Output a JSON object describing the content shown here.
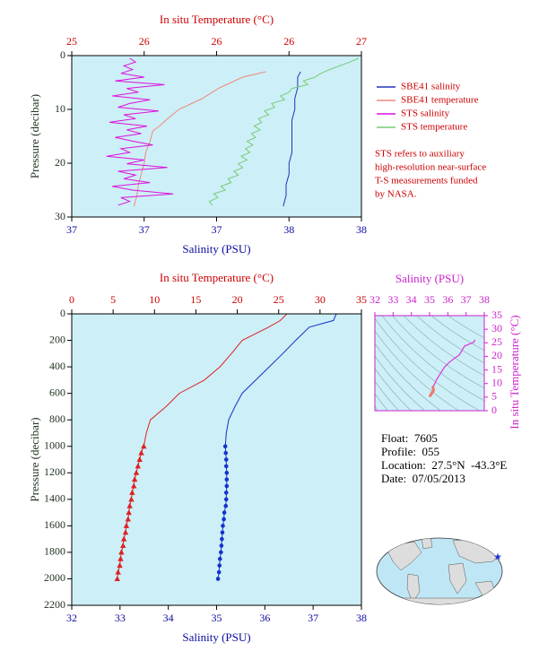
{
  "chart_data": [
    {
      "type": "profile",
      "x2label": "In situ Temperature (°C)",
      "xlabel": "Salinity (PSU)",
      "ylabel": "Pressure (decibar)",
      "x2lim": [
        25,
        27
      ],
      "x2ticks": [
        25,
        {
          "value": 25.5,
          "label": "26"
        },
        26,
        {
          "value": 26.5,
          "label": "26"
        },
        27
      ],
      "xlim": [
        37,
        38
      ],
      "xticks": [
        37,
        {
          "value": 37.25,
          "label": "37"
        },
        {
          "value": 37.5,
          "label": "37"
        },
        {
          "value": 37.75,
          "label": "38"
        },
        38
      ],
      "ylim": [
        0,
        30
      ],
      "yticks": [
        0,
        10,
        20,
        30
      ],
      "y_inverted": true,
      "background": "#cdeff7",
      "legend": "right",
      "series": [
        {
          "name": "SBE41 salinity",
          "color": "#2233bb",
          "values": [
            37.79,
            37.78,
            37.78,
            37.77,
            37.77,
            37.76,
            37.76,
            37.76,
            37.76,
            37.75,
            37.75,
            37.74,
            37.74,
            37.73
          ],
          "y": [
            3,
            4,
            6,
            8,
            10,
            12,
            14,
            16,
            18,
            20,
            22,
            24,
            26,
            28
          ]
        },
        {
          "name": "SBE41 temperature",
          "color": "#f08878",
          "axis": "x2",
          "values": [
            26.34,
            26.18,
            26.02,
            25.9,
            25.74,
            25.65,
            25.61,
            25.56,
            25.54,
            25.51,
            25.5,
            25.48,
            25.46,
            25.45,
            25.43
          ],
          "y": [
            3,
            4,
            6,
            8,
            10,
            12,
            13,
            14,
            16,
            18,
            20,
            22,
            24,
            26,
            28
          ]
        },
        {
          "name": "STS salinity",
          "color": "#dd11dd",
          "values": [
            37.2,
            37.22,
            37.18,
            37.21,
            37.17,
            37.25,
            37.15,
            37.32,
            37.19,
            37.23,
            37.14,
            37.27,
            37.2,
            37.16,
            37.3,
            37.18,
            37.22,
            37.13,
            37.26,
            37.19,
            37.24,
            37.15,
            37.21,
            37.28,
            37.17,
            37.2,
            37.12,
            37.25,
            37.19,
            37.33,
            37.16,
            37.22,
            37.18,
            37.27,
            37.14,
            37.21,
            37.35,
            37.17,
            37.2,
            37.16
          ],
          "y": [
            0.5,
            1.2,
            1.9,
            2.6,
            3.3,
            4.0,
            4.7,
            5.4,
            6.1,
            6.8,
            7.5,
            8.2,
            8.9,
            9.6,
            10.3,
            11.0,
            11.7,
            12.4,
            13.1,
            13.8,
            14.5,
            15.2,
            15.9,
            16.6,
            17.3,
            18.0,
            18.7,
            19.4,
            20.1,
            20.8,
            21.5,
            22.2,
            22.9,
            23.6,
            24.3,
            25.0,
            25.7,
            26.4,
            27.1,
            27.8
          ]
        },
        {
          "name": "STS temperature",
          "color": "#77cc77",
          "axis": "x2",
          "values": [
            26.98,
            26.92,
            26.85,
            26.78,
            26.72,
            26.68,
            26.6,
            26.63,
            26.52,
            26.5,
            26.44,
            26.47,
            26.38,
            26.4,
            26.33,
            26.36,
            26.29,
            26.31,
            26.26,
            26.3,
            26.24,
            26.27,
            26.21,
            26.25,
            26.2,
            26.23,
            26.17,
            26.21,
            26.15,
            26.18,
            26.12,
            26.15,
            26.08,
            26.1,
            26.03,
            26.06,
            25.98,
            26.01,
            25.95,
            25.97
          ],
          "y": [
            0.5,
            1.2,
            1.9,
            2.6,
            3.3,
            4.0,
            4.7,
            5.4,
            6.1,
            6.8,
            7.5,
            8.2,
            8.9,
            9.6,
            10.3,
            11.0,
            11.7,
            12.4,
            13.1,
            13.8,
            14.5,
            15.2,
            15.9,
            16.6,
            17.3,
            18.0,
            18.7,
            19.4,
            20.1,
            20.8,
            21.5,
            22.2,
            22.9,
            23.6,
            24.3,
            25.0,
            25.7,
            26.4,
            27.1,
            27.8
          ]
        }
      ],
      "note": [
        "STS refers to auxiliary",
        "high-resolution near-surface",
        "T-S measurements funded",
        "by NASA."
      ]
    },
    {
      "type": "profile",
      "x2label": "In situ Temperature (°C)",
      "xlabel": "Salinity (PSU)",
      "ylabel": "Pressure (decibar)",
      "x2lim": [
        0,
        35
      ],
      "x2ticks": [
        0,
        5,
        10,
        15,
        20,
        25,
        30,
        35
      ],
      "xlim": [
        32,
        38
      ],
      "xticks": [
        32,
        33,
        34,
        35,
        36,
        37,
        38
      ],
      "ylim": [
        0,
        2200
      ],
      "yticks": [
        0,
        200,
        400,
        600,
        800,
        1000,
        1200,
        1400,
        1600,
        1800,
        2000,
        2200
      ],
      "y_inverted": true,
      "background": "#cdeff7",
      "series": [
        {
          "color": "#dd2222",
          "axis": "x2",
          "values": [
            26.0,
            25.2,
            23.8,
            20.6,
            19.3,
            17.9,
            16.0,
            13.0,
            11.4,
            9.5,
            9.0,
            8.7
          ],
          "y": [
            0,
            50,
            100,
            200,
            300,
            400,
            500,
            600,
            700,
            800,
            900,
            1000
          ]
        },
        {
          "color": "#dd2222",
          "axis": "x2",
          "marker": "triangle",
          "values": [
            8.7,
            8.4,
            8.2,
            8.0,
            7.8,
            7.6,
            7.5,
            7.3,
            7.2,
            7.0,
            6.9,
            6.8,
            6.6,
            6.5,
            6.3,
            6.2,
            6.0,
            5.9,
            5.8,
            5.6,
            5.5
          ],
          "y": [
            1000,
            1050,
            1100,
            1150,
            1200,
            1250,
            1300,
            1350,
            1400,
            1450,
            1500,
            1550,
            1600,
            1650,
            1700,
            1750,
            1800,
            1850,
            1900,
            1950,
            2000
          ]
        },
        {
          "color": "#1133cc",
          "values": [
            37.48,
            37.42,
            36.92,
            36.64,
            36.37,
            36.09,
            35.81,
            35.53,
            35.38,
            35.25,
            35.2,
            35.18
          ],
          "y": [
            0,
            50,
            100,
            200,
            300,
            400,
            500,
            600,
            700,
            800,
            900,
            1000
          ]
        },
        {
          "color": "#1133cc",
          "marker": "circle",
          "values": [
            35.18,
            35.19,
            35.2,
            35.2,
            35.21,
            35.21,
            35.21,
            35.2,
            35.2,
            35.19,
            35.16,
            35.15,
            35.13,
            35.12,
            35.11,
            35.1,
            35.09,
            35.07,
            35.06,
            35.05,
            35.03
          ],
          "y": [
            1000,
            1050,
            1100,
            1150,
            1200,
            1250,
            1300,
            1350,
            1400,
            1450,
            1500,
            1550,
            1600,
            1650,
            1700,
            1750,
            1800,
            1850,
            1900,
            1950,
            2000
          ]
        }
      ]
    },
    {
      "type": "ts",
      "xlabel": "Salinity (PSU)",
      "ylabel": "In situ Temperature (°C)",
      "xlim": [
        32,
        38
      ],
      "xticks": [
        32,
        33,
        34,
        35,
        36,
        37,
        38
      ],
      "ylim": [
        0,
        35
      ],
      "yticks": [
        0,
        5,
        10,
        15,
        20,
        25,
        30,
        35
      ],
      "colors": [
        "#dd33dd",
        "#f07868"
      ],
      "background": "#cdeff7"
    }
  ],
  "info": [
    "Float:  7605",
    "Profile:  055",
    "Location:  27.5°N  -43.3°E",
    "Date:  07/05/2013"
  ]
}
